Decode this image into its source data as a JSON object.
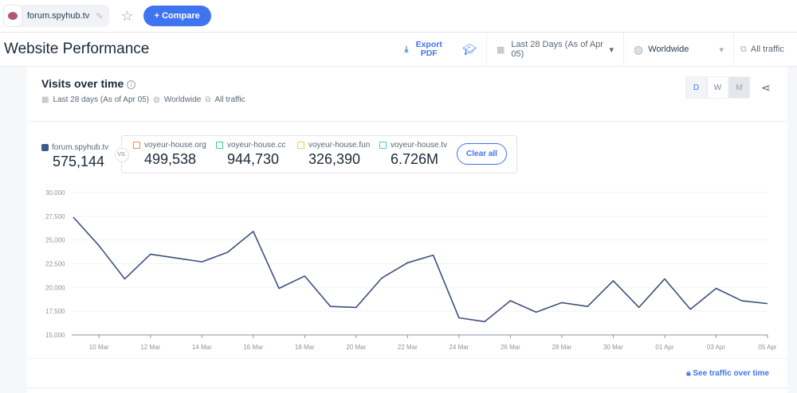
{
  "topbar": {
    "site": "forum.spyhub.tv",
    "compare_label": "+ Compare"
  },
  "header": {
    "title": "Website Performance",
    "export_label": "Export PDF",
    "date_range": "Last 28 Days (As of Apr 05)",
    "country": "Worldwide",
    "traffic": "All traffic"
  },
  "card": {
    "title": "Visits over time",
    "info": "i",
    "filters": {
      "date": "Last 28 days (As of Apr 05)",
      "country": "Worldwide",
      "traffic": "All traffic"
    },
    "granularity": [
      "D",
      "W",
      "M"
    ],
    "selected_granularity": "D",
    "main_site": {
      "name": "forum.spyhub.tv",
      "value": "575,144"
    },
    "vs": "VS.",
    "competitors": [
      {
        "name": "voyeur-house.org",
        "value": "499,538",
        "color": "#f08a4b"
      },
      {
        "name": "voyeur-house.cc",
        "value": "944,730",
        "color": "#3fc7a6"
      },
      {
        "name": "voyeur-house.fun",
        "value": "326,390",
        "color": "#f2c94c"
      },
      {
        "name": "voyeur-house.tv",
        "value": "6.726M",
        "color": "#4bcbd6"
      }
    ],
    "clear_all": "Clear all",
    "see_traffic": "See traffic over time"
  },
  "chart_data": {
    "type": "line",
    "ylim": [
      15000,
      30000
    ],
    "yticks": [
      "30,000",
      "27,500",
      "25,000",
      "22,500",
      "20,000",
      "17,500",
      "15,000"
    ],
    "xtick_labels": [
      "10 Mar",
      "12 Mar",
      "14 Mar",
      "16 Mar",
      "18 Mar",
      "20 Mar",
      "22 Mar",
      "24 Mar",
      "26 Mar",
      "28 Mar",
      "30 Mar",
      "01 Apr",
      "03 Apr",
      "05 Apr"
    ],
    "x": [
      "09 Mar",
      "10 Mar",
      "11 Mar",
      "12 Mar",
      "13 Mar",
      "14 Mar",
      "15 Mar",
      "16 Mar",
      "17 Mar",
      "18 Mar",
      "19 Mar",
      "20 Mar",
      "21 Mar",
      "22 Mar",
      "23 Mar",
      "24 Mar",
      "25 Mar",
      "26 Mar",
      "27 Mar",
      "28 Mar",
      "29 Mar",
      "30 Mar",
      "31 Mar",
      "01 Apr",
      "02 Apr",
      "03 Apr",
      "04 Apr",
      "05 Apr"
    ],
    "series": [
      {
        "values": [
          27400,
          24400,
          20900,
          23500,
          23100,
          22700,
          23700,
          25900,
          19900,
          21200,
          18000,
          17900,
          21000,
          22600,
          23400,
          16800,
          16400,
          18600,
          17400,
          18400,
          18000,
          20700,
          17900,
          20900,
          17700,
          19900,
          18600,
          18300
        ],
        "color": "#3d4f7c"
      }
    ],
    "grid": true
  }
}
